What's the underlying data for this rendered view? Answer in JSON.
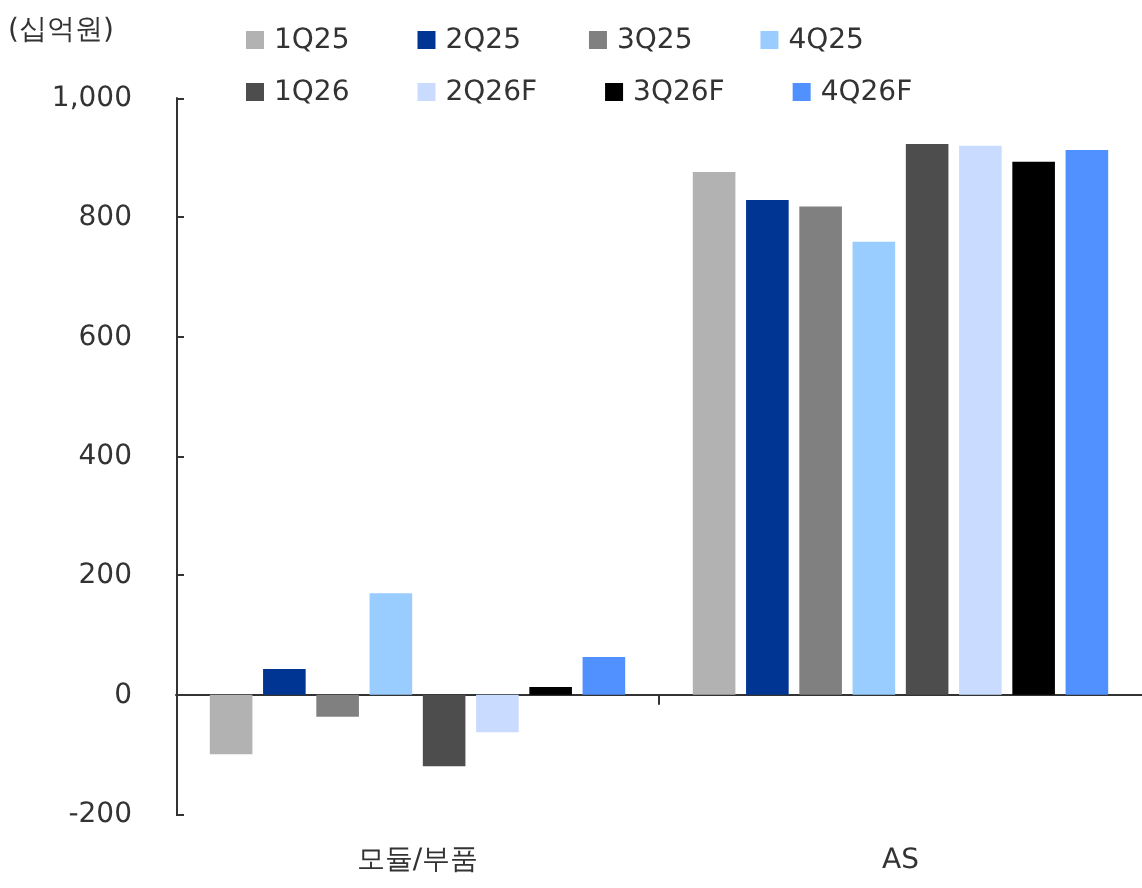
{
  "chart_data": {
    "type": "bar",
    "ylabel": "(십억원)",
    "categories": [
      "모듈/부품",
      "AS"
    ],
    "series": [
      {
        "name": "1Q25",
        "color": "#b2b2b2",
        "values": [
          -100,
          876
        ]
      },
      {
        "name": "2Q25",
        "color": "#003594",
        "values": [
          43,
          829
        ]
      },
      {
        "name": "3Q25",
        "color": "#808080",
        "values": [
          -37,
          818
        ]
      },
      {
        "name": "4Q25",
        "color": "#99ccff",
        "values": [
          170,
          759
        ]
      },
      {
        "name": "1Q26",
        "color": "#4d4d4d",
        "values": [
          -120,
          923
        ]
      },
      {
        "name": "2Q26F",
        "color": "#c9dcff",
        "values": [
          -63,
          920
        ]
      },
      {
        "name": "3Q26F",
        "color": "#000000",
        "values": [
          13,
          893
        ]
      },
      {
        "name": "4Q26F",
        "color": "#5091ff",
        "values": [
          63,
          913
        ]
      }
    ],
    "ylim": [
      -200,
      1000
    ],
    "yticks": [
      -200,
      0,
      200,
      400,
      600,
      800,
      {
        "value": 1000,
        "label": "1,000"
      }
    ],
    "legend": "top"
  }
}
